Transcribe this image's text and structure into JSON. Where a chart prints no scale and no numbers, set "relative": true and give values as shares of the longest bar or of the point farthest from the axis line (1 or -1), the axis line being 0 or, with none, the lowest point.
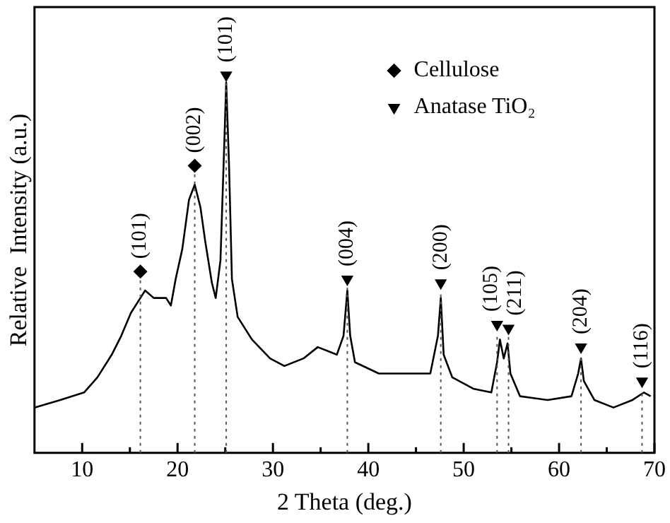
{
  "chart_data": {
    "type": "line",
    "xlabel": "2 Theta (deg.)",
    "ylabel": "Relative  Intensity (a.u.)",
    "relative": true,
    "xlim": [
      5,
      70
    ],
    "xticks": [
      10,
      {
        "value": 15,
        "label": null
      },
      20,
      {
        "value": 25,
        "label": null
      },
      30,
      {
        "value": 35,
        "label": null
      },
      40,
      {
        "value": 45,
        "label": null
      },
      50,
      {
        "value": 55,
        "label": null
      },
      60,
      {
        "value": 65,
        "label": null
      },
      70
    ],
    "legend": "top right",
    "series": [
      {
        "color": "#000000",
        "x": [
          5.0,
          7.7,
          10.2,
          11.6,
          13.1,
          14.1,
          15.1,
          16.1,
          16.6,
          17.5,
          18.8,
          19.3,
          19.8,
          20.5,
          21.2,
          21.8,
          22.4,
          22.9,
          23.6,
          24.0,
          24.5,
          24.9,
          25.1,
          25.4,
          25.7,
          26.3,
          27.8,
          29.7,
          31.2,
          33.2,
          34.7,
          36.7,
          37.4,
          37.8,
          38.1,
          38.6,
          41.1,
          44.1,
          46.5,
          47.3,
          47.6,
          47.9,
          48.8,
          51.0,
          52.9,
          53.5,
          53.8,
          54.2,
          54.6,
          54.9,
          55.9,
          58.8,
          61.3,
          62.0,
          62.3,
          62.6,
          63.7,
          65.7,
          67.7,
          68.9,
          69.6
        ],
        "values": [
          0.12,
          0.14,
          0.16,
          0.2,
          0.26,
          0.31,
          0.37,
          0.41,
          0.43,
          0.41,
          0.41,
          0.39,
          0.46,
          0.54,
          0.67,
          0.71,
          0.65,
          0.56,
          0.45,
          0.41,
          0.51,
          0.82,
          0.98,
          0.76,
          0.46,
          0.36,
          0.3,
          0.25,
          0.23,
          0.25,
          0.28,
          0.26,
          0.31,
          0.43,
          0.31,
          0.24,
          0.21,
          0.21,
          0.21,
          0.31,
          0.41,
          0.26,
          0.2,
          0.17,
          0.16,
          0.24,
          0.3,
          0.25,
          0.29,
          0.21,
          0.15,
          0.14,
          0.15,
          0.21,
          0.25,
          0.19,
          0.14,
          0.12,
          0.14,
          0.16,
          0.15
        ],
        "line_style": "solid"
      },
      {
        "type": "scatter",
        "name": "Cellulose",
        "color": "#000000",
        "marker": "diamond",
        "x": [
          16.1,
          21.8
        ],
        "values": [
          0.48,
          0.76
        ]
      },
      {
        "type": "scatter",
        "name": "Anatase TiO₂",
        "color": "#000000",
        "marker": "triangle",
        "x": [
          25.1,
          37.8,
          47.6,
          53.5,
          54.7,
          62.3,
          68.7
        ],
        "values": [
          1,
          0.46,
          0.45,
          0.34,
          0.33,
          0.28,
          0.19
        ]
      }
    ],
    "ref_lines": [
      {
        "axis": "x",
        "value": 16.1,
        "color": "#555555",
        "line_style": "dotted"
      },
      {
        "axis": "x",
        "value": 21.8,
        "color": "#555555",
        "line_style": "dotted"
      },
      {
        "axis": "x",
        "value": 25.1,
        "color": "#555555",
        "line_style": "dotted"
      },
      {
        "axis": "x",
        "value": 37.8,
        "color": "#555555",
        "line_style": "dotted"
      },
      {
        "axis": "x",
        "value": 47.6,
        "color": "#555555",
        "line_style": "dotted"
      },
      {
        "axis": "x",
        "value": 53.5,
        "color": "#555555",
        "line_style": "dotted"
      },
      {
        "axis": "x",
        "value": 54.7,
        "color": "#555555",
        "line_style": "dotted"
      },
      {
        "axis": "x",
        "value": 62.3,
        "color": "#555555",
        "line_style": "dotted"
      },
      {
        "axis": "x",
        "value": 68.7,
        "color": "#555555",
        "line_style": "dotted"
      }
    ],
    "annotations": [
      {
        "text": "(101)",
        "x": 16.1,
        "y": 0.48
      },
      {
        "text": "(002)",
        "x": 21.8,
        "y": 0.76
      },
      {
        "text": "(101)",
        "x": 25.1,
        "y": 1
      },
      {
        "text": "(004)",
        "x": 37.8,
        "y": 0.46
      },
      {
        "text": "(200)",
        "x": 47.6,
        "y": 0.45
      },
      {
        "text": "(105)",
        "x": 53.5,
        "y": 0.34
      },
      {
        "text": "(211)",
        "x": 54.7,
        "y": 0.33
      },
      {
        "text": "(204)",
        "x": 62.3,
        "y": 0.28
      },
      {
        "text": "(116)",
        "x": 68.7,
        "y": 0.19
      }
    ]
  }
}
